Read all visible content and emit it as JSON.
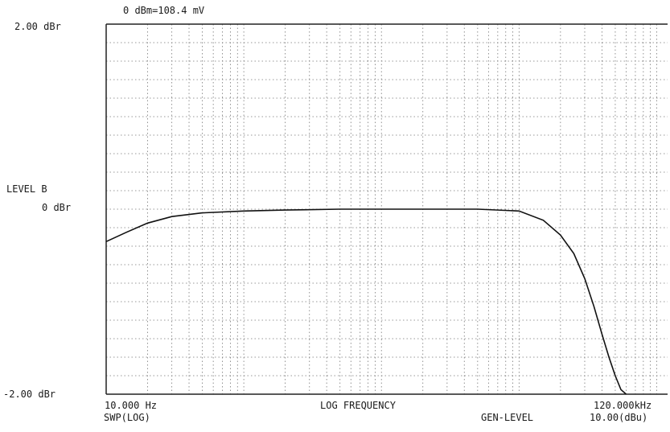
{
  "header": {
    "reference": "0 dBm=108.4 mV"
  },
  "labels": {
    "y_top": "2.00 dBr",
    "y_bottom": "-2.00 dBr",
    "y_title": "LEVEL  B",
    "y_mid": "0 dBr",
    "x_left": "10.000 Hz",
    "x_right": "120.000kHz",
    "x_title": "LOG FREQUENCY",
    "left_sub": "SWP(LOG)",
    "right_sub_1": "GEN-LEVEL",
    "right_sub_2": "10.00(dBu)"
  },
  "chart_data": {
    "type": "line",
    "xscale": "log",
    "xlim": [
      10,
      120000
    ],
    "ylim": [
      -2,
      2
    ],
    "grid": true,
    "x": [
      10,
      14,
      20,
      30,
      50,
      100,
      200,
      500,
      1000,
      2000,
      5000,
      10000,
      15000,
      20000,
      25000,
      30000,
      35000,
      40000,
      45000,
      50000,
      55000,
      60000
    ],
    "y": [
      -0.35,
      -0.25,
      -0.15,
      -0.08,
      -0.04,
      -0.02,
      -0.01,
      0,
      0,
      0,
      0,
      -0.02,
      -0.12,
      -0.28,
      -0.48,
      -0.75,
      -1.05,
      -1.35,
      -1.6,
      -1.8,
      -1.95,
      -2.05
    ]
  }
}
